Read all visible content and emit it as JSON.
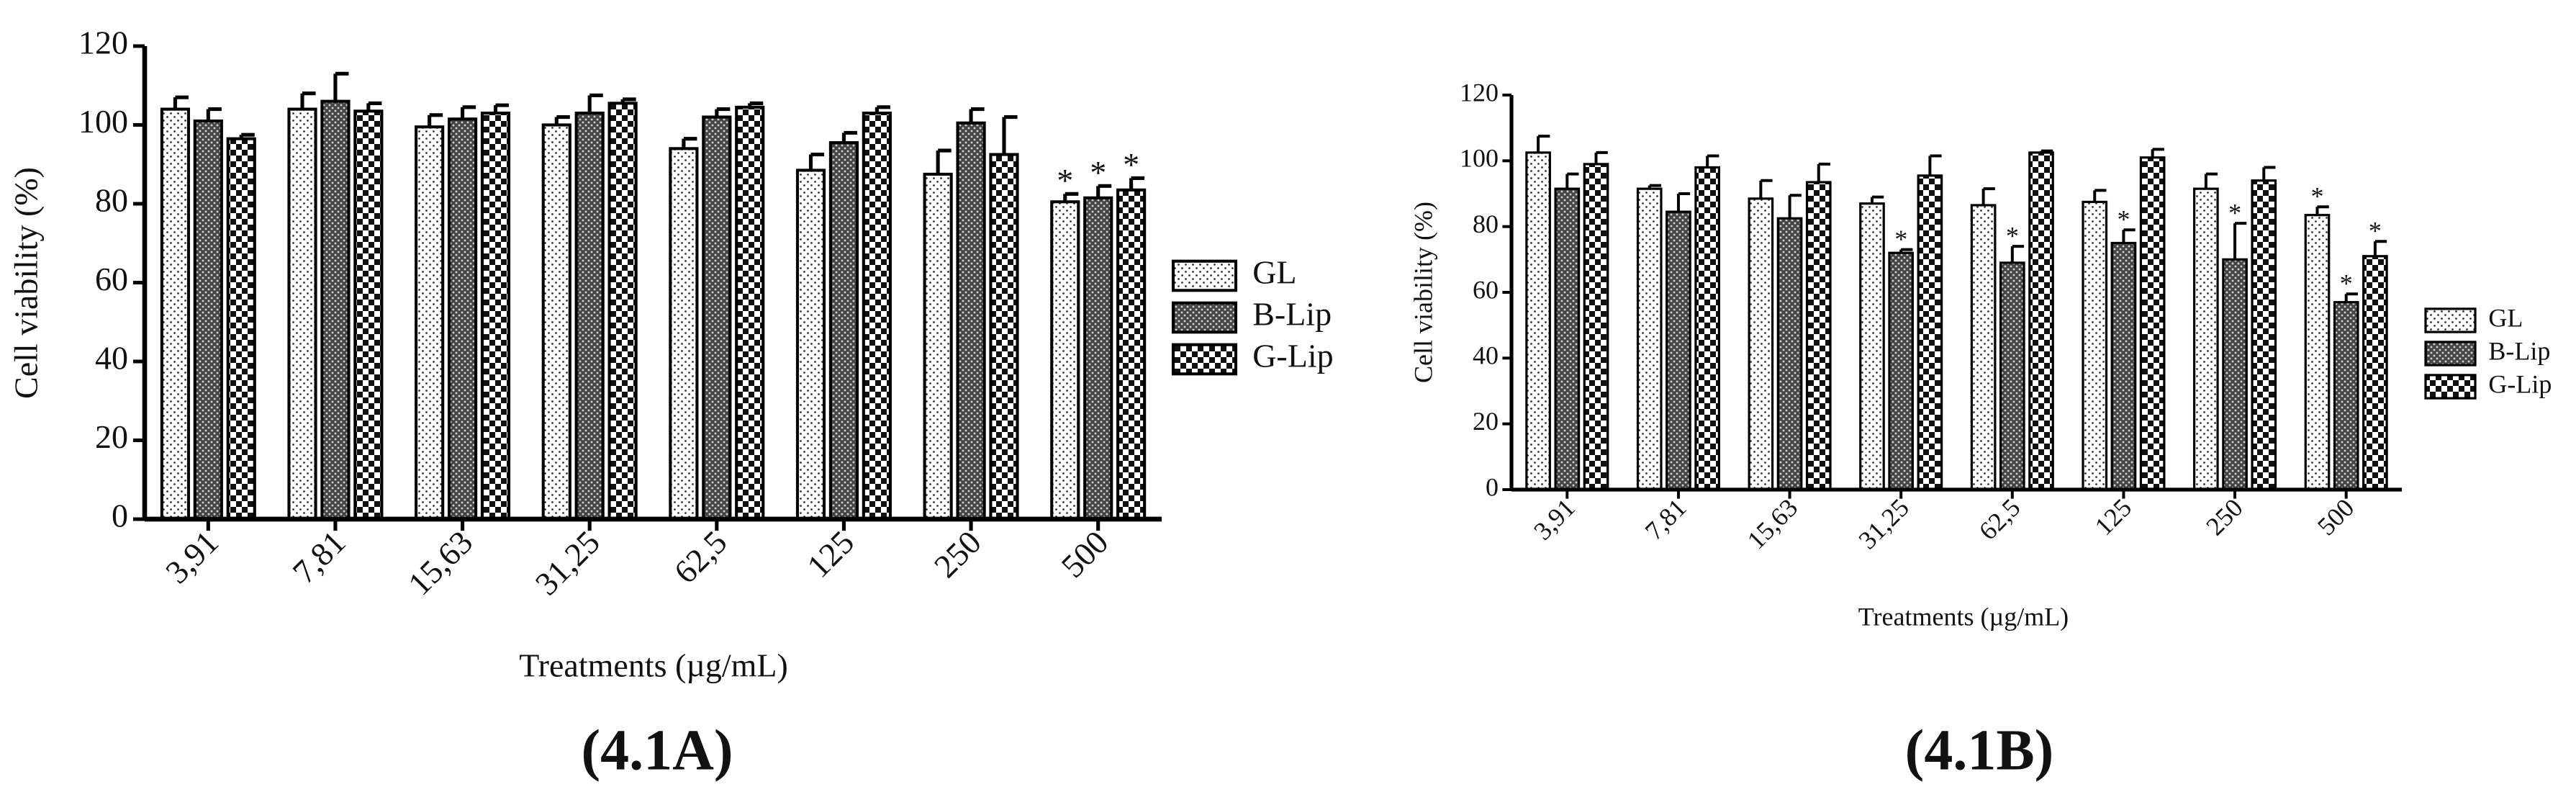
{
  "chart_data": [
    {
      "type": "bar",
      "panel_label": "(4.1A)",
      "x_label": "Treatments (µg/mL)",
      "y_label": "Cell viability (%)",
      "categories": [
        "3,91",
        "7,81",
        "15,63",
        "31,25",
        "62,5",
        "125",
        "250",
        "500"
      ],
      "ylim": [
        0,
        120
      ],
      "yticks": [
        0,
        20,
        40,
        60,
        80,
        100,
        120
      ],
      "series": [
        {
          "name": "GL",
          "values": [
            104,
            104,
            99.5,
            100,
            94,
            88.5,
            87.5,
            80.5
          ],
          "errors": [
            3,
            4,
            3,
            2,
            2.5,
            4,
            6,
            2
          ],
          "markers": [
            null,
            null,
            null,
            null,
            null,
            null,
            null,
            "*"
          ]
        },
        {
          "name": "B-Lip",
          "values": [
            101,
            106,
            101.5,
            103,
            102,
            95.5,
            100.5,
            81.5
          ],
          "errors": [
            3,
            7,
            3,
            4.5,
            2,
            2.5,
            3.5,
            3
          ],
          "markers": [
            null,
            null,
            null,
            null,
            null,
            null,
            null,
            "*"
          ]
        },
        {
          "name": "G-Lip",
          "values": [
            96.5,
            103.5,
            103,
            105.5,
            104.5,
            103,
            92.5,
            83.5
          ],
          "errors": [
            1,
            2,
            2,
            1,
            1,
            1.5,
            9.5,
            3
          ],
          "markers": [
            null,
            null,
            null,
            null,
            null,
            null,
            null,
            "*"
          ]
        }
      ]
    },
    {
      "type": "bar",
      "panel_label": "(4.1B)",
      "x_label": "Treatments (µg/mL)",
      "y_label": "Cell viability (%)",
      "categories": [
        "3,91",
        "7,81",
        "15,63",
        "31,25",
        "62,5",
        "125",
        "250",
        "500"
      ],
      "ylim": [
        0,
        120
      ],
      "yticks": [
        0,
        20,
        40,
        60,
        80,
        100,
        120
      ],
      "series": [
        {
          "name": "GL",
          "values": [
            102.5,
            91.5,
            88.5,
            87,
            86.5,
            87.5,
            91.5,
            83.5
          ],
          "errors": [
            5,
            1,
            5.5,
            2,
            5,
            3.5,
            4.5,
            2.5
          ],
          "markers": [
            null,
            null,
            null,
            null,
            null,
            null,
            null,
            "*"
          ]
        },
        {
          "name": "B-Lip",
          "values": [
            91.5,
            84.5,
            82.5,
            72,
            69,
            75,
            70,
            57
          ],
          "errors": [
            4.5,
            5.5,
            7,
            1,
            5,
            4,
            11,
            2.5
          ],
          "markers": [
            null,
            null,
            null,
            "*",
            "*",
            "*",
            "*",
            "*"
          ]
        },
        {
          "name": "G-Lip",
          "values": [
            99,
            98,
            93.5,
            95.5,
            102.5,
            101,
            94,
            71
          ],
          "errors": [
            3.5,
            3.5,
            5.5,
            6,
            0.5,
            2.5,
            4,
            4.5
          ],
          "markers": [
            null,
            null,
            null,
            null,
            null,
            null,
            null,
            "*"
          ]
        }
      ]
    }
  ]
}
